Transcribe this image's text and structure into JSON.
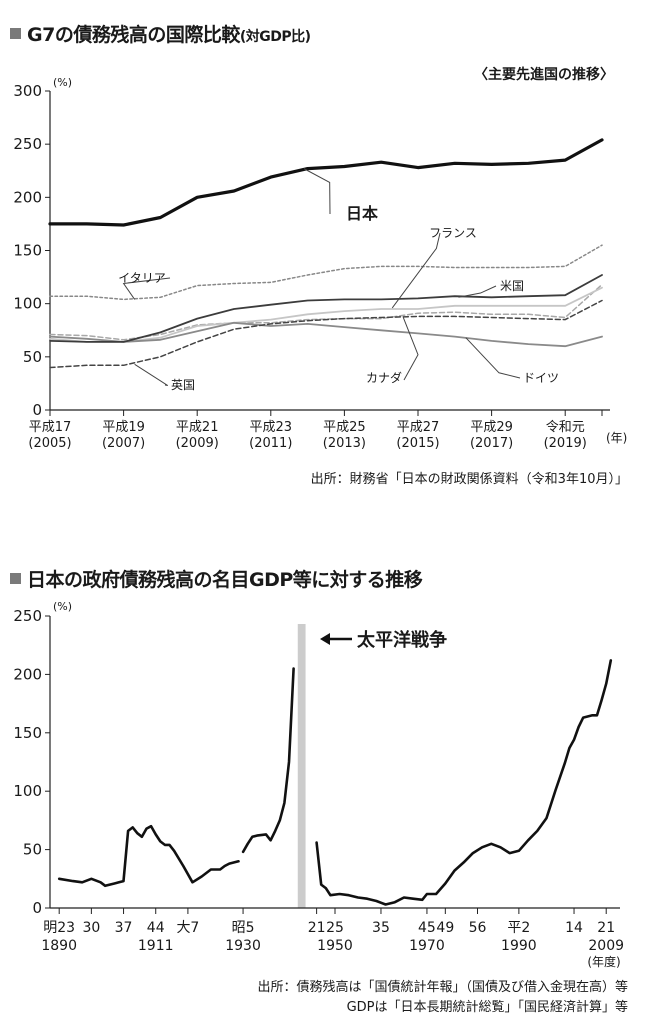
{
  "chart_data": [
    {
      "type": "line",
      "title": "G7の債務残高の国際比較",
      "title_suffix": "(対GDP比)",
      "subtitle": "〈主要先進国の推移〉",
      "unit_label": "(%)",
      "year_unit": "(年)",
      "x": [
        2005,
        2006,
        2007,
        2008,
        2009,
        2010,
        2011,
        2012,
        2013,
        2014,
        2015,
        2016,
        2017,
        2018,
        2019,
        2020
      ],
      "xlim": [
        2005,
        2020
      ],
      "x_ticks": [
        {
          "x": 2005,
          "era": "平成17",
          "year": "(2005)"
        },
        {
          "x": 2007,
          "era": "平成19",
          "year": "(2007)"
        },
        {
          "x": 2009,
          "era": "平成21",
          "year": "(2009)"
        },
        {
          "x": 2011,
          "era": "平成23",
          "year": "(2011)"
        },
        {
          "x": 2013,
          "era": "平成25",
          "year": "(2013)"
        },
        {
          "x": 2015,
          "era": "平成27",
          "year": "(2015)"
        },
        {
          "x": 2017,
          "era": "平成29",
          "year": "(2017)"
        },
        {
          "x": 2019,
          "era": "令和元",
          "year": "(2019)"
        }
      ],
      "ylim": [
        0,
        300
      ],
      "y_ticks": [
        "0",
        "50",
        "100",
        "150",
        "200",
        "250",
        "300"
      ],
      "grid": false,
      "series": [
        {
          "name": "日本",
          "color": "#111111",
          "style": "bold",
          "values": [
            175,
            175,
            174,
            181,
            200,
            206,
            219,
            227,
            229,
            233,
            228,
            232,
            231,
            232,
            235,
            254
          ]
        },
        {
          "name": "イタリア",
          "color": "#888888",
          "style": "dotted",
          "values": [
            107,
            107,
            104,
            106,
            117,
            119,
            120,
            127,
            133,
            135,
            135,
            134,
            134,
            134,
            135,
            155
          ]
        },
        {
          "name": "フランス",
          "color": "#c6c6c6",
          "style": "solid",
          "values": [
            67,
            64,
            64,
            68,
            79,
            82,
            85,
            90,
            93,
            95,
            95,
            98,
            98,
            98,
            98,
            115
          ]
        },
        {
          "name": "米国",
          "color": "#3c3c3c",
          "style": "solid",
          "values": [
            65,
            64,
            64,
            73,
            86,
            95,
            99,
            103,
            104,
            104,
            105,
            107,
            106,
            107,
            108,
            127
          ]
        },
        {
          "name": "英国",
          "color": "#444444",
          "style": "dashed",
          "values": [
            40,
            42,
            42,
            50,
            64,
            76,
            81,
            84,
            86,
            87,
            88,
            88,
            87,
            86,
            85,
            103
          ]
        },
        {
          "name": "カナダ",
          "color": "#a8a8a8",
          "style": "dashed",
          "values": [
            71,
            70,
            66,
            71,
            80,
            82,
            82,
            85,
            86,
            86,
            91,
            92,
            90,
            90,
            87,
            118
          ]
        },
        {
          "name": "ドイツ",
          "color": "#8a8a8a",
          "style": "solid",
          "values": [
            69,
            67,
            64,
            66,
            74,
            82,
            79,
            81,
            78,
            75,
            72,
            69,
            65,
            62,
            60,
            69
          ]
        }
      ],
      "source": "出所：財務省「日本の財政関係資料（令和3年10月）」"
    },
    {
      "type": "line",
      "title": "日本の政府債務残高の名目GDP等に対する推移",
      "unit_label": "(%)",
      "year_unit": "(年度)",
      "annotation": "太平洋戦争",
      "xlim": [
        1888,
        2012
      ],
      "ylim": [
        0,
        250
      ],
      "y_ticks": [
        "0",
        "50",
        "100",
        "150",
        "200",
        "250"
      ],
      "war_period": [
        1941,
        1945
      ],
      "grid": false,
      "x_ticks": [
        {
          "x": 1890,
          "era": "明23",
          "year": "1890"
        },
        {
          "x": 1897,
          "era": "30",
          "year": ""
        },
        {
          "x": 1904,
          "era": "37",
          "year": ""
        },
        {
          "x": 1911,
          "era": "44",
          "year": "1911"
        },
        {
          "x": 1918,
          "era": "大7",
          "year": ""
        },
        {
          "x": 1930,
          "era": "昭5",
          "year": "1930"
        },
        {
          "x": 1946,
          "era": "21",
          "year": ""
        },
        {
          "x": 1950,
          "era": "25",
          "year": "1950"
        },
        {
          "x": 1960,
          "era": "35",
          "year": ""
        },
        {
          "x": 1970,
          "era": "45",
          "year": "1970"
        },
        {
          "x": 1974,
          "era": "49",
          "year": ""
        },
        {
          "x": 1981,
          "era": "56",
          "year": ""
        },
        {
          "x": 1990,
          "era": "平2",
          "year": "1990"
        },
        {
          "x": 2002,
          "era": "14",
          "year": ""
        },
        {
          "x": 2009,
          "era": "21",
          "year": "2009"
        }
      ],
      "segments": [
        [
          [
            1890,
            25
          ],
          [
            1893,
            23
          ],
          [
            1895,
            22
          ],
          [
            1897,
            25
          ],
          [
            1899,
            22
          ],
          [
            1900,
            19
          ],
          [
            1901,
            20
          ],
          [
            1902,
            21
          ],
          [
            1903,
            22
          ],
          [
            1904,
            23
          ],
          [
            1905,
            66
          ],
          [
            1906,
            69
          ],
          [
            1907,
            64
          ],
          [
            1908,
            61
          ],
          [
            1909,
            68
          ],
          [
            1910,
            70
          ],
          [
            1911,
            63
          ],
          [
            1912,
            57
          ],
          [
            1913,
            54
          ],
          [
            1914,
            54
          ],
          [
            1915,
            49
          ],
          [
            1917,
            36
          ],
          [
            1919,
            22
          ],
          [
            1921,
            27
          ],
          [
            1923,
            33
          ],
          [
            1925,
            33
          ],
          [
            1926,
            36
          ],
          [
            1927,
            38
          ],
          [
            1929,
            40
          ]
        ],
        [
          [
            1930,
            48
          ],
          [
            1931,
            55
          ],
          [
            1932,
            61
          ],
          [
            1933,
            62
          ],
          [
            1935,
            63
          ],
          [
            1936,
            58
          ],
          [
            1937,
            66
          ],
          [
            1938,
            75
          ],
          [
            1939,
            90
          ],
          [
            1940,
            125
          ],
          [
            1941,
            205
          ]
        ],
        [
          [
            1946,
            56
          ],
          [
            1947,
            20
          ],
          [
            1948,
            17
          ],
          [
            1949,
            11
          ],
          [
            1951,
            12
          ],
          [
            1953,
            11
          ],
          [
            1955,
            9
          ],
          [
            1957,
            8
          ],
          [
            1959,
            6
          ],
          [
            1961,
            3
          ],
          [
            1963,
            5
          ],
          [
            1965,
            9
          ],
          [
            1967,
            8
          ],
          [
            1969,
            7
          ],
          [
            1970,
            12
          ],
          [
            1972,
            12
          ],
          [
            1974,
            21
          ],
          [
            1976,
            32
          ],
          [
            1978,
            39
          ],
          [
            1980,
            47
          ],
          [
            1982,
            52
          ],
          [
            1984,
            55
          ],
          [
            1986,
            52
          ],
          [
            1988,
            47
          ],
          [
            1990,
            49
          ],
          [
            1992,
            58
          ],
          [
            1994,
            66
          ],
          [
            1996,
            77
          ],
          [
            1998,
            101
          ],
          [
            2000,
            124
          ],
          [
            2001,
            137
          ],
          [
            2002,
            144
          ],
          [
            2003,
            155
          ],
          [
            2004,
            163
          ],
          [
            2006,
            165
          ],
          [
            2007,
            165
          ],
          [
            2008,
            178
          ],
          [
            2009,
            192
          ],
          [
            2010,
            212
          ]
        ]
      ],
      "source_lines": [
        "出所：債務残高は「国債統計年報」（国債及び借入金現在高）等",
        "GDPは「日本長期統計総覧」「国民経済計算」等"
      ]
    }
  ]
}
